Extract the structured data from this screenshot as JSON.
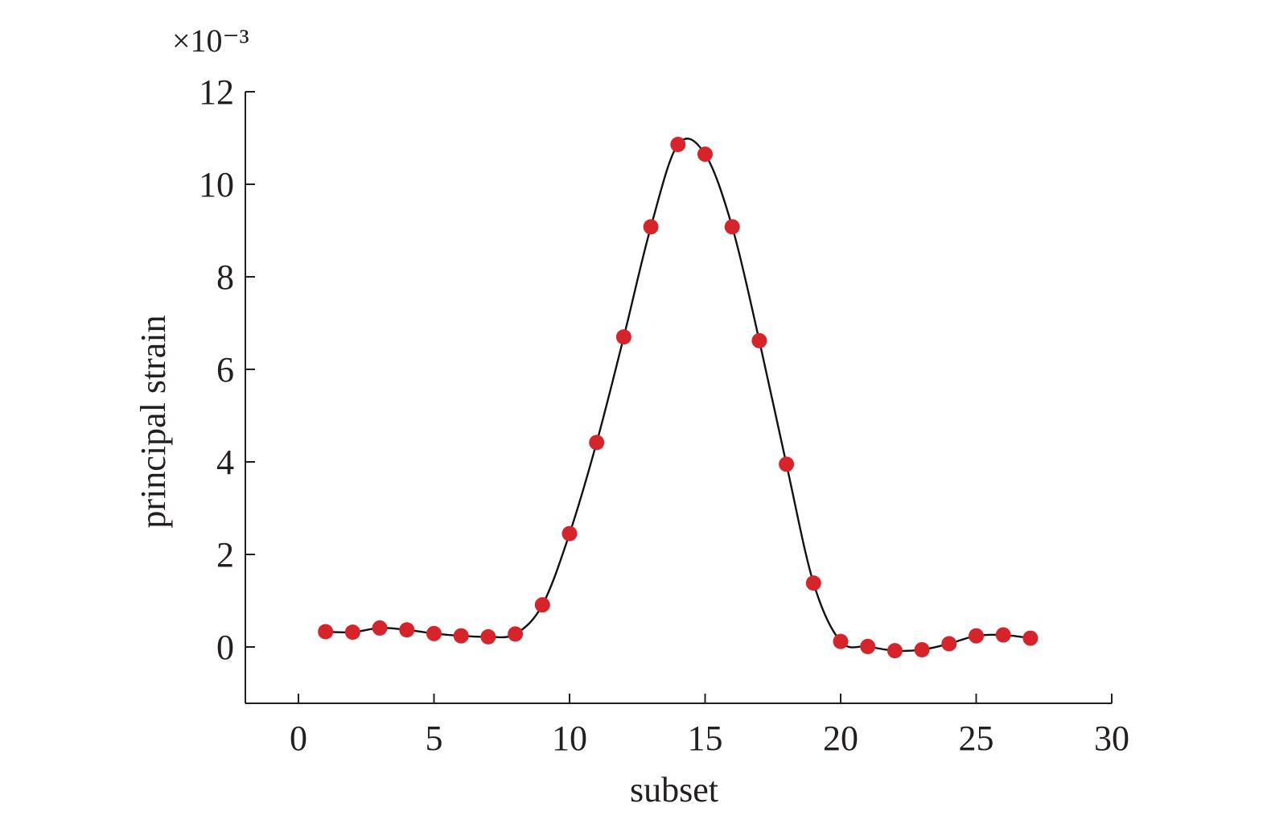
{
  "chart_data": {
    "type": "line",
    "title": "",
    "xlabel": "subset",
    "ylabel": "principal strain",
    "y_multiplier": "×10⁻³",
    "xlim": [
      -2,
      30
    ],
    "ylim": [
      -1.2,
      12
    ],
    "x_ticks": [
      0,
      5,
      10,
      15,
      20,
      25,
      30
    ],
    "y_ticks": [
      0,
      2,
      4,
      6,
      8,
      10,
      12
    ],
    "grid": false,
    "legend": "none",
    "marker_color": "#d7242b",
    "line_color": "#111111",
    "series": [
      {
        "x": [
          1,
          2,
          3,
          4,
          5,
          6,
          7,
          8,
          9,
          10,
          11,
          12,
          13,
          14,
          15,
          16,
          17,
          18,
          19,
          20,
          21,
          22,
          23,
          24,
          25,
          26,
          27
        ],
        "y": [
          0.33,
          0.32,
          0.41,
          0.37,
          0.29,
          0.24,
          0.22,
          0.28,
          0.91,
          2.45,
          4.42,
          6.7,
          9.08,
          10.86,
          10.65,
          9.08,
          6.62,
          3.95,
          1.38,
          0.12,
          0.01,
          -0.08,
          -0.06,
          0.07,
          0.24,
          0.26,
          0.19
        ]
      }
    ]
  }
}
